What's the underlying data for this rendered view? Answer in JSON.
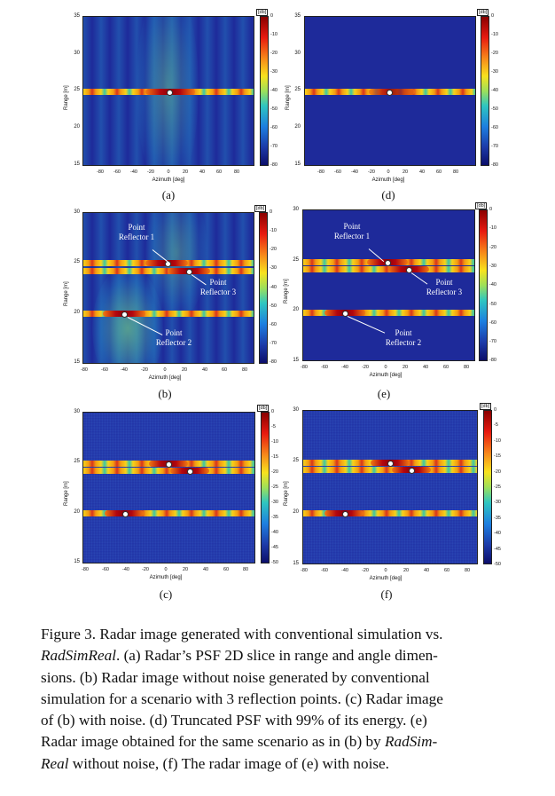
{
  "panels": {
    "a": {
      "label": "(a)",
      "yticks": [
        "35",
        "30",
        "25",
        "20",
        "15"
      ],
      "xticks": [
        "-80",
        "-60",
        "-40",
        "-20",
        "0",
        "20",
        "40",
        "60",
        "80"
      ],
      "cbar_ticks": [
        "0",
        "-10",
        "-20",
        "-30",
        "-40",
        "-50",
        "-60",
        "-70",
        "-80"
      ],
      "cbar_unit": "[db]",
      "xlabel": "Azimuth [deg]",
      "ylabel": "Range [m]"
    },
    "d": {
      "label": "(d)",
      "yticks": [
        "35",
        "30",
        "25",
        "20",
        "15"
      ],
      "xticks": [
        "-80",
        "-60",
        "-40",
        "-20",
        "0",
        "20",
        "40",
        "60",
        "80"
      ],
      "cbar_ticks": [
        "0",
        "-10",
        "-20",
        "-30",
        "-40",
        "-50",
        "-60",
        "-70",
        "-80"
      ],
      "cbar_unit": "[db]",
      "xlabel": "Azimuth [deg]",
      "ylabel": "Range [m]"
    },
    "b": {
      "label": "(b)",
      "yticks": [
        "30",
        "25",
        "20",
        "15"
      ],
      "xticks": [
        "-80",
        "-60",
        "-40",
        "-20",
        "0",
        "20",
        "40",
        "60",
        "80"
      ],
      "cbar_ticks": [
        "0",
        "-10",
        "-20",
        "-30",
        "-40",
        "-50",
        "-60",
        "-70",
        "-80"
      ],
      "cbar_unit": "[db]",
      "xlabel": "Azimuth [deg]",
      "ylabel": "Range [m]",
      "annotations": [
        "Point Reflector 1",
        "Point Reflector 3",
        "Point Reflector 2"
      ]
    },
    "e": {
      "label": "(e)",
      "yticks": [
        "30",
        "25",
        "20",
        "15"
      ],
      "xticks": [
        "-80",
        "-60",
        "-40",
        "-20",
        "0",
        "20",
        "40",
        "60",
        "80"
      ],
      "cbar_ticks": [
        "0",
        "-10",
        "-20",
        "-30",
        "-40",
        "-50",
        "-60",
        "-70",
        "-80"
      ],
      "cbar_unit": "[db]",
      "xlabel": "Azimuth [deg]",
      "ylabel": "Range [m]",
      "annotations": [
        "Point Reflector 1",
        "Point Reflector 3",
        "Point Reflector 2"
      ]
    },
    "c": {
      "label": "(c)",
      "yticks": [
        "30",
        "25",
        "20",
        "15"
      ],
      "xticks": [
        "-80",
        "-60",
        "-40",
        "-20",
        "0",
        "20",
        "40",
        "60",
        "80"
      ],
      "cbar_ticks": [
        "0",
        "-5",
        "-10",
        "-15",
        "-20",
        "-25",
        "-30",
        "-35",
        "-40",
        "-45",
        "-50"
      ],
      "cbar_unit": "[db]",
      "xlabel": "Azimuth [deg]",
      "ylabel": "Range [m]"
    },
    "f": {
      "label": "(f)",
      "yticks": [
        "30",
        "25",
        "20",
        "15"
      ],
      "xticks": [
        "-80",
        "-60",
        "-40",
        "-20",
        "0",
        "20",
        "40",
        "60",
        "80"
      ],
      "cbar_ticks": [
        "0",
        "-5",
        "-10",
        "-15",
        "-20",
        "-25",
        "-30",
        "-35",
        "-40",
        "-45",
        "-50"
      ],
      "cbar_unit": "[db]",
      "xlabel": "Azimuth [deg]",
      "ylabel": "Range [m]"
    }
  },
  "caption": {
    "line1": "Figure 3. Radar image generated with conventional simulation vs.",
    "line2_italic": "RadSimReal",
    "line2_rest": ". (a) Radar’s PSF 2D slice in range and angle dimen-",
    "line3": "sions. (b) Radar image without noise generated by conventional",
    "line4": "simulation for a scenario with 3 reflection points. (c) Radar image",
    "line5": "of (b) with noise. (d) Truncated PSF with 99% of its energy. (e)",
    "line6_a": "Radar image obtained for the same scenario as in (b) by ",
    "line6_italic": "RadSim-",
    "line7_italic": "Real",
    "line7_rest": " without noise, (f) The radar image of (e) with noise."
  }
}
